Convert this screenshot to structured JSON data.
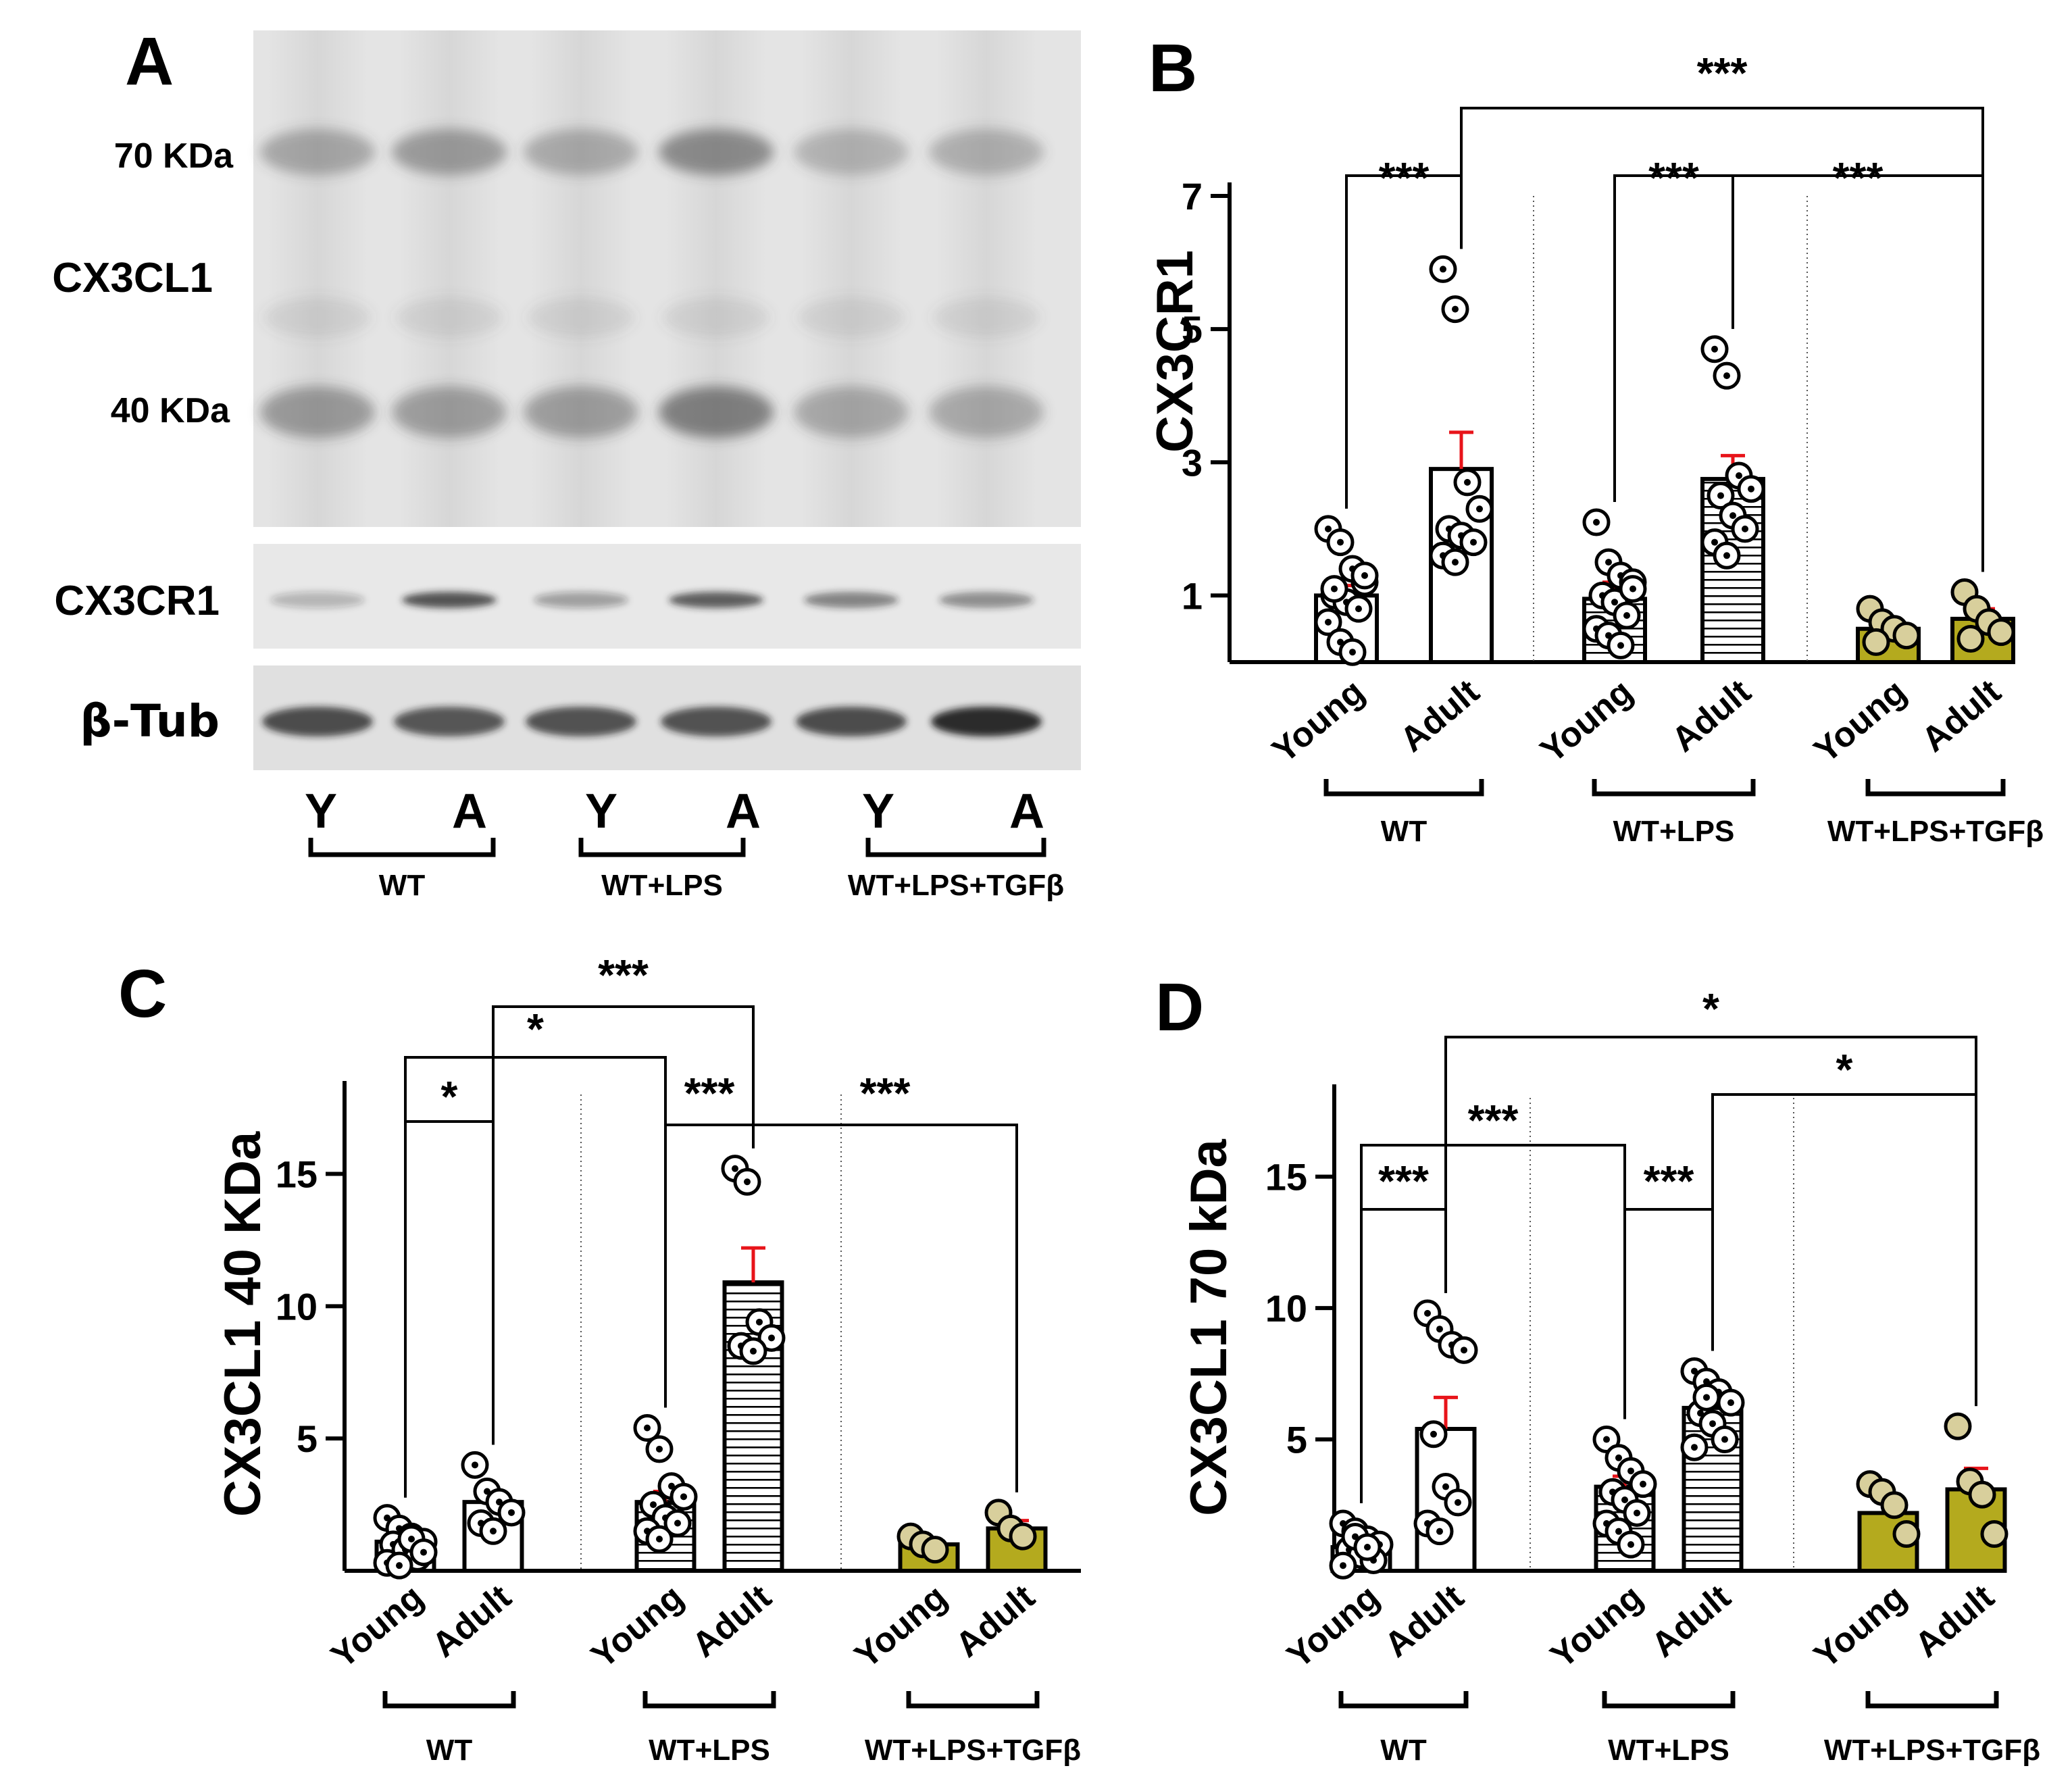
{
  "panels": {
    "a": {
      "letter": "A",
      "labels": {
        "kda70": "70 KDa",
        "cx3cl1": "CX3CL1",
        "kda40": "40 KDa",
        "cx3cr1": "CX3CR1",
        "tub": "β-Tub"
      },
      "lanes": [
        "Y",
        "A",
        "Y",
        "A",
        "Y",
        "A"
      ],
      "groups": [
        "WT",
        "WT+LPS",
        "WT+LPS+TGFβ"
      ]
    },
    "b": {
      "letter": "B"
    },
    "c": {
      "letter": "C"
    },
    "d": {
      "letter": "D"
    }
  },
  "colors": {
    "bar_olive": "#b4aa1e",
    "point_beige": "#d8cf9c",
    "sem_red": "#e8141a",
    "black": "#000000"
  },
  "chart_data": [
    {
      "panel": "B",
      "type": "bar",
      "ylabel": "CX3CR1",
      "yticks": [
        1,
        3,
        5,
        7
      ],
      "ylim": [
        0,
        7
      ],
      "categories": [
        "Young",
        "Adult",
        "Young",
        "Adult",
        "Young",
        "Adult"
      ],
      "groups": [
        "WT",
        "WT+LPS",
        "WT+LPS+TGFβ"
      ],
      "means": [
        1.0,
        2.9,
        0.95,
        2.75,
        0.5,
        0.65
      ],
      "sem": [
        0.15,
        0.55,
        0.25,
        0.35,
        0.08,
        0.15
      ],
      "fills": [
        "white",
        "white",
        "stripes",
        "stripes",
        "olive",
        "olive"
      ],
      "points": [
        [
          2.0,
          1.8,
          1.4,
          1.2,
          1.0,
          0.9,
          0.8,
          0.6,
          0.3,
          0.15,
          1.3,
          1.1
        ],
        [
          5.9,
          5.3,
          2.7,
          2.3,
          2.0,
          1.9,
          1.8,
          1.6,
          1.5
        ],
        [
          2.1,
          1.5,
          1.3,
          1.2,
          1.0,
          0.9,
          0.7,
          0.5,
          0.4,
          0.25,
          1.1
        ],
        [
          4.7,
          4.3,
          2.8,
          2.6,
          2.5,
          2.2,
          2.0,
          1.8,
          1.6
        ],
        [
          0.8,
          0.6,
          0.5,
          0.4,
          0.3
        ],
        [
          1.05,
          0.8,
          0.6,
          0.45,
          0.35
        ]
      ],
      "significance": [
        {
          "from": 0,
          "to": 1,
          "label": "***"
        },
        {
          "from": 2,
          "to": 3,
          "label": "***"
        },
        {
          "from": 3,
          "to": 5,
          "label": "***"
        },
        {
          "from": 1,
          "to": 5,
          "label": "***"
        }
      ]
    },
    {
      "panel": "C",
      "type": "bar",
      "ylabel": "CX3CL1 40 KDa",
      "yticks": [
        5,
        10,
        15
      ],
      "ylim": [
        0,
        18
      ],
      "categories": [
        "Young",
        "Adult",
        "Young",
        "Adult",
        "Young",
        "Adult"
      ],
      "groups": [
        "WT",
        "WT+LPS",
        "WT+LPS+TGFβ"
      ],
      "means": [
        1.1,
        2.6,
        2.6,
        10.9,
        1.0,
        1.6
      ],
      "sem": [
        0.2,
        0.3,
        0.4,
        1.3,
        0.1,
        0.3
      ],
      "fills": [
        "white",
        "white",
        "stripes",
        "stripes",
        "olive",
        "olive"
      ],
      "points": [
        [
          2.0,
          1.6,
          1.3,
          1.1,
          1.0,
          0.8,
          0.5,
          0.3,
          0.2,
          1.2,
          0.7
        ],
        [
          4.0,
          3.0,
          2.6,
          2.2,
          1.8,
          1.5
        ],
        [
          5.4,
          4.6,
          3.2,
          2.8,
          2.5,
          2.0,
          1.8,
          1.5,
          1.2
        ],
        [
          15.2,
          14.7,
          9.4,
          8.8,
          8.5,
          8.3
        ],
        [
          1.3,
          1.0,
          0.8
        ],
        [
          2.2,
          1.6,
          1.3
        ]
      ],
      "significance": [
        {
          "from": 0,
          "to": 1,
          "label": "*"
        },
        {
          "from": 0,
          "to": 2,
          "label": "*"
        },
        {
          "from": 2,
          "to": 3,
          "label": "***"
        },
        {
          "from": 3,
          "to": 5,
          "label": "***"
        },
        {
          "from": 1,
          "to": 3,
          "label": "***"
        }
      ]
    },
    {
      "panel": "D",
      "type": "bar",
      "ylabel": "CX3CL1 70 kDa",
      "yticks": [
        5,
        10,
        15
      ],
      "ylim": [
        0,
        18
      ],
      "categories": [
        "Young",
        "Adult",
        "Young",
        "Adult",
        "Young",
        "Adult"
      ],
      "groups": [
        "WT",
        "WT+LPS",
        "WT+LPS+TGFβ"
      ],
      "means": [
        0.9,
        5.4,
        3.2,
        6.2,
        2.2,
        3.1
      ],
      "sem": [
        0.3,
        1.2,
        0.4,
        0.4,
        0.6,
        0.8
      ],
      "fills": [
        "white",
        "white",
        "stripes",
        "stripes",
        "olive",
        "olive"
      ],
      "points": [
        [
          1.8,
          1.5,
          1.2,
          1.0,
          0.8,
          0.6,
          0.4,
          0.2,
          1.3,
          0.9
        ],
        [
          9.8,
          9.2,
          8.6,
          8.4,
          5.2,
          3.2,
          2.6,
          1.8,
          1.5
        ],
        [
          5.0,
          4.3,
          3.8,
          3.3,
          3.0,
          2.7,
          2.2,
          1.8,
          1.5,
          1.0
        ],
        [
          7.6,
          7.2,
          6.8,
          6.4,
          6.0,
          5.6,
          5.0,
          4.7,
          6.6
        ],
        [
          3.3,
          3.0,
          2.5,
          1.4
        ],
        [
          5.5,
          3.4,
          2.9,
          1.4
        ]
      ],
      "significance": [
        {
          "from": 0,
          "to": 1,
          "label": "***"
        },
        {
          "from": 2,
          "to": 3,
          "label": "***"
        },
        {
          "from": 0,
          "to": 2,
          "label": "***"
        },
        {
          "from": 3,
          "to": 5,
          "label": "*"
        },
        {
          "from": 1,
          "to": 5,
          "label": "*"
        }
      ]
    }
  ]
}
